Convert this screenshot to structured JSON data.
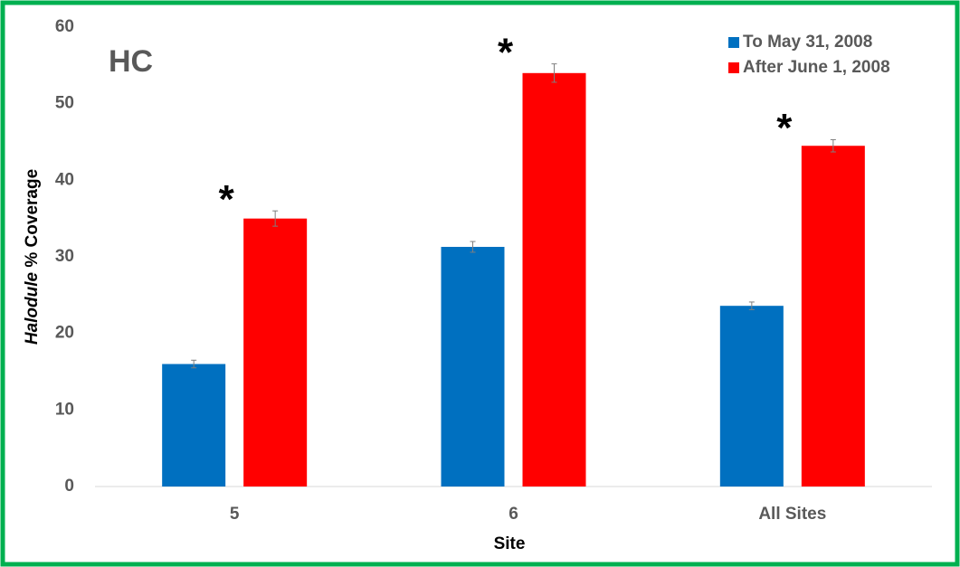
{
  "chart_data": {
    "type": "bar",
    "annotation": "HC",
    "x_label": "Site",
    "y_label": [
      "Halodule",
      "% Coverage"
    ],
    "categories": [
      "5",
      "6",
      "All Sites"
    ],
    "series": [
      {
        "name": "To May 31, 2008",
        "color": "#0070c0",
        "values": [
          16,
          31.3,
          23.6
        ],
        "errors": [
          0.5,
          0.7,
          0.5
        ]
      },
      {
        "name": "After June 1, 2008",
        "color": "#ff0000",
        "values": [
          35,
          54,
          44.5
        ],
        "errors": [
          1.0,
          1.2,
          0.8
        ]
      }
    ],
    "significance_markers": [
      "*",
      "*",
      "*"
    ],
    "ylim": [
      0,
      60
    ],
    "yticks": [
      0,
      10,
      20,
      30,
      40,
      50,
      60
    ],
    "grid": false,
    "legend": "top-right"
  }
}
